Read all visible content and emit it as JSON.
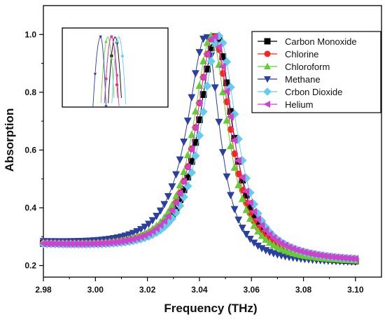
{
  "chart_data": {
    "type": "scatter",
    "xlabel": "Frequency (THz)",
    "ylabel": "Absorption",
    "xlim": [
      2.98,
      3.11
    ],
    "ylim": [
      0.16,
      1.1
    ],
    "x_ticks": [
      "2.98",
      "3.00",
      "3.02",
      "3.04",
      "3.06",
      "3.08",
      "3.10"
    ],
    "y_ticks": [
      "0.2",
      "0.4",
      "0.6",
      "0.8",
      "1.0"
    ],
    "legend_position": "top-right",
    "inset": "zoomed view of the absorption peaks",
    "series": [
      {
        "name": "Carbon Monoxide",
        "color": "#000000",
        "marker": "square",
        "peak_x": 3.0465,
        "peak_y": 0.995,
        "base": 0.205,
        "left_tail": 0.298,
        "width_left": 0.0085,
        "width_right": 0.0085
      },
      {
        "name": "Chlorine",
        "color": "#ff2020",
        "marker": "circle",
        "peak_x": 3.0455,
        "peak_y": 0.995,
        "base": 0.207,
        "left_tail": 0.3,
        "width_left": 0.0085,
        "width_right": 0.0085
      },
      {
        "name": "Chloroform",
        "color": "#66cc33",
        "marker": "triangle-up",
        "peak_x": 3.0445,
        "peak_y": 0.995,
        "base": 0.207,
        "left_tail": 0.3,
        "width_left": 0.0085,
        "width_right": 0.0085
      },
      {
        "name": "Methane",
        "color": "#2a3fa0",
        "marker": "triangle-down",
        "peak_x": 3.0425,
        "peak_y": 0.995,
        "base": 0.207,
        "left_tail": 0.305,
        "width_left": 0.009,
        "width_right": 0.007
      },
      {
        "name": "Crbon Dioxide",
        "color": "#66ccee",
        "marker": "diamond",
        "peak_x": 3.0475,
        "peak_y": 0.995,
        "base": 0.21,
        "left_tail": 0.296,
        "width_left": 0.0085,
        "width_right": 0.009
      },
      {
        "name": "Helium",
        "color": "#cc44cc",
        "marker": "triangle-left",
        "peak_x": 3.0455,
        "peak_y": 0.995,
        "base": 0.21,
        "left_tail": 0.298,
        "width_left": 0.0085,
        "width_right": 0.0095
      }
    ]
  }
}
